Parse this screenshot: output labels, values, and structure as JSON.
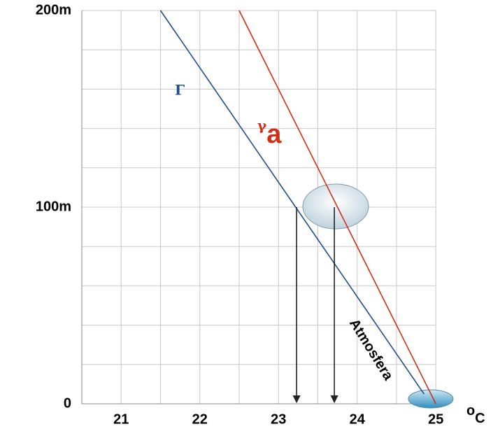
{
  "chart_data": {
    "type": "line",
    "series": [
      {
        "name": "Γ",
        "color": "#1f4e8c",
        "x": [
          21.5,
          24.85
        ],
        "values": [
          200,
          5
        ]
      },
      {
        "name": "γ",
        "name_sub": "a",
        "color": "#d0301a",
        "x": [
          22.5,
          25
        ],
        "values": [
          200,
          0
        ]
      }
    ],
    "arrows": [
      {
        "x": 23.23,
        "from": 100,
        "to": 0
      },
      {
        "x": 23.71,
        "from": 100,
        "to": 0
      }
    ],
    "annotation": "Atmosfera",
    "x_unit": {
      "sup": "o",
      "text": "C"
    },
    "xlim": [
      20.5,
      25
    ],
    "xticks": [
      21,
      22,
      23,
      24,
      25
    ],
    "ylim": [
      0,
      200
    ],
    "yticks": [
      {
        "value": 0,
        "label": "0"
      },
      {
        "value": 100,
        "label": "100m"
      },
      {
        "value": 200,
        "label": "200m"
      }
    ],
    "xgrid": [
      21,
      21.5,
      22,
      22.5,
      23,
      23.5,
      24,
      24.5,
      25
    ],
    "ygrid": [
      20,
      40,
      60,
      80,
      100,
      120,
      140,
      160,
      180,
      200
    ],
    "grid": true
  }
}
